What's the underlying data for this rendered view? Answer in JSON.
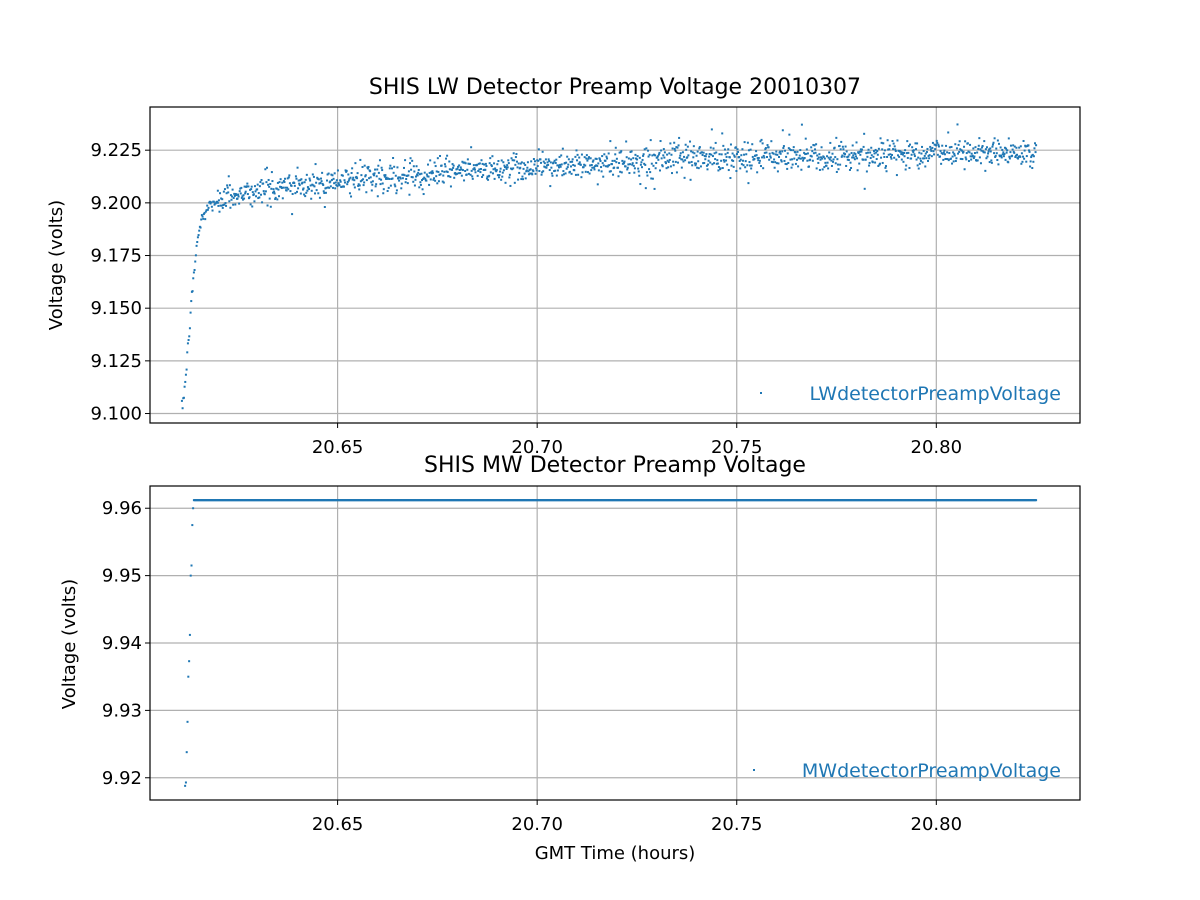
{
  "chart_data": [
    {
      "type": "scatter",
      "title": "SHIS LW Detector Preamp Voltage 20010307",
      "xlabel": "",
      "ylabel": "Voltage (volts)",
      "xlim": [
        20.603,
        20.836
      ],
      "ylim": [
        9.0955,
        9.2455
      ],
      "xticks": [
        "20.65",
        "20.70",
        "20.75",
        "20.80"
      ],
      "yticks": [
        "9.100",
        "9.125",
        "9.150",
        "9.175",
        "9.200",
        "9.225"
      ],
      "grid": true,
      "legend": {
        "placement": "lower-right",
        "entries": [
          "LWdetectorPreampVoltage"
        ]
      },
      "color": "#1f77b4",
      "series": [
        {
          "name": "LWdetectorPreampVoltage",
          "description_of_trend": "rises steeply from 9.10 at 20.611 to ~9.20 by 20.620, then slowly climbs to ~9.224 at 20.825 with ±0.005 scatter",
          "x": [
            20.611,
            20.612,
            20.6125,
            20.613,
            20.6135,
            20.614,
            20.6145,
            20.615,
            20.616,
            20.617,
            20.618,
            20.62,
            20.625,
            20.63,
            20.64,
            20.65,
            20.66,
            20.68,
            20.7,
            20.72,
            20.74,
            20.76,
            20.78,
            20.8,
            20.825
          ],
          "y": [
            9.101,
            9.118,
            9.131,
            9.143,
            9.155,
            9.166,
            9.176,
            9.184,
            9.192,
            9.196,
            9.199,
            9.201,
            9.204,
            9.206,
            9.208,
            9.21,
            9.212,
            9.215,
            9.217,
            9.219,
            9.221,
            9.222,
            9.223,
            9.224,
            9.224
          ]
        }
      ]
    },
    {
      "type": "scatter",
      "title": "SHIS MW Detector Preamp Voltage",
      "xlabel": "GMT Time (hours)",
      "ylabel": "Voltage (volts)",
      "xlim": [
        20.603,
        20.836
      ],
      "ylim": [
        9.9167,
        9.9633
      ],
      "xticks": [
        "20.65",
        "20.70",
        "20.75",
        "20.80"
      ],
      "yticks": [
        "9.92",
        "9.93",
        "9.94",
        "9.95",
        "9.96"
      ],
      "grid": true,
      "legend": {
        "placement": "lower-right",
        "entries": [
          "MWdetectorPreampVoltage"
        ]
      },
      "color": "#1f77b4",
      "series": [
        {
          "name": "MWdetectorPreampVoltage",
          "x": [
            20.6118,
            20.612,
            20.6122,
            20.6124,
            20.6126,
            20.6128,
            20.613,
            20.6132,
            20.6134,
            20.6136,
            20.6138,
            20.614,
            20.825
          ],
          "y": [
            9.9188,
            9.9193,
            9.9238,
            9.9283,
            9.935,
            9.9373,
            9.9412,
            9.95,
            9.9515,
            9.9575,
            9.96,
            9.9612,
            9.9612
          ]
        }
      ]
    }
  ]
}
